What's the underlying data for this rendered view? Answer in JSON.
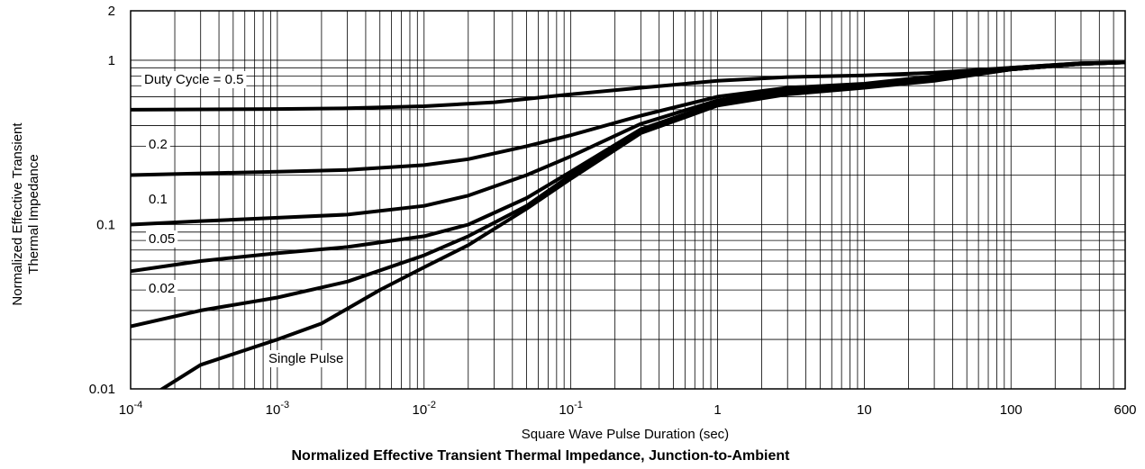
{
  "chart_data": {
    "type": "line",
    "title": "Normalized Effective Transient Thermal Impedance, Junction-to-Ambient",
    "xlabel": "Square Wave Pulse Duration (sec)",
    "ylabel": [
      "Normalized Effective Transient",
      "Thermal Impedance"
    ],
    "x_scale": "log",
    "y_scale": "log",
    "xlim": [
      0.0001,
      600
    ],
    "ylim": [
      0.01,
      2
    ],
    "grid": true,
    "x_ticks": [
      {
        "value": 0.0001,
        "base": "10",
        "exp": "-4"
      },
      {
        "value": 0.001,
        "base": "10",
        "exp": "-3"
      },
      {
        "value": 0.01,
        "base": "10",
        "exp": "-2"
      },
      {
        "value": 0.1,
        "base": "10",
        "exp": "-1"
      },
      {
        "value": 1,
        "base": "1",
        "exp": ""
      },
      {
        "value": 10,
        "base": "10",
        "exp": ""
      },
      {
        "value": 100,
        "base": "100",
        "exp": ""
      },
      {
        "value": 600,
        "base": "600",
        "exp": ""
      }
    ],
    "y_ticks": [
      {
        "value": 0.01,
        "label": "0.01"
      },
      {
        "value": 0.1,
        "label": "0.1"
      },
      {
        "value": 1,
        "label": "1"
      },
      {
        "value": 2,
        "label": "2"
      }
    ],
    "series": [
      {
        "label": "Duty Cycle = 0.5",
        "x": [
          0.0001,
          0.001,
          0.003,
          0.01,
          0.03,
          0.1,
          0.3,
          1,
          3,
          10,
          30,
          100,
          300,
          600
        ],
        "y": [
          0.5,
          0.505,
          0.51,
          0.525,
          0.555,
          0.62,
          0.68,
          0.75,
          0.79,
          0.81,
          0.84,
          0.9,
          0.96,
          0.97
        ]
      },
      {
        "label": "0.2",
        "x": [
          0.0001,
          0.001,
          0.003,
          0.01,
          0.02,
          0.05,
          0.1,
          0.3,
          1,
          3,
          10,
          30,
          100,
          300,
          600
        ],
        "y": [
          0.2,
          0.21,
          0.215,
          0.23,
          0.25,
          0.3,
          0.35,
          0.46,
          0.6,
          0.68,
          0.72,
          0.8,
          0.9,
          0.96,
          0.97
        ]
      },
      {
        "label": "0.1",
        "x": [
          0.0001,
          0.0003,
          0.001,
          0.003,
          0.01,
          0.02,
          0.05,
          0.1,
          0.3,
          1,
          3,
          10,
          30,
          100,
          300,
          600
        ],
        "y": [
          0.1,
          0.105,
          0.11,
          0.115,
          0.13,
          0.15,
          0.2,
          0.26,
          0.41,
          0.57,
          0.66,
          0.71,
          0.78,
          0.88,
          0.95,
          0.97
        ]
      },
      {
        "label": "0.05",
        "x": [
          0.0001,
          0.0003,
          0.001,
          0.003,
          0.01,
          0.02,
          0.05,
          0.1,
          0.3,
          1,
          3,
          10,
          30,
          100,
          300,
          600
        ],
        "y": [
          0.052,
          0.06,
          0.067,
          0.073,
          0.085,
          0.1,
          0.145,
          0.21,
          0.38,
          0.55,
          0.64,
          0.7,
          0.77,
          0.88,
          0.95,
          0.97
        ]
      },
      {
        "label": "0.02",
        "x": [
          0.0001,
          0.0003,
          0.001,
          0.003,
          0.01,
          0.02,
          0.05,
          0.1,
          0.3,
          1,
          3,
          10,
          30,
          100,
          300,
          600
        ],
        "y": [
          0.024,
          0.03,
          0.036,
          0.045,
          0.065,
          0.085,
          0.13,
          0.2,
          0.37,
          0.54,
          0.63,
          0.69,
          0.76,
          0.88,
          0.95,
          0.97
        ]
      },
      {
        "label": "Single Pulse",
        "x": [
          0.00015,
          0.0003,
          0.001,
          0.002,
          0.005,
          0.01,
          0.02,
          0.05,
          0.1,
          0.3,
          1,
          3,
          10,
          30,
          100,
          300,
          600
        ],
        "y": [
          0.0095,
          0.014,
          0.02,
          0.025,
          0.04,
          0.055,
          0.075,
          0.125,
          0.19,
          0.36,
          0.53,
          0.62,
          0.68,
          0.75,
          0.88,
          0.95,
          0.97
        ]
      }
    ]
  }
}
